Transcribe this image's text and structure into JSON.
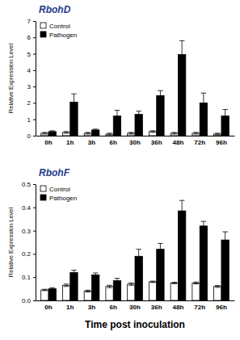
{
  "chart_data": [
    {
      "type": "bar",
      "title": "RbohD",
      "y_label": "Relative Expression Level",
      "categories": [
        "0h",
        "1h",
        "3h",
        "6h",
        "30h",
        "36h",
        "48h",
        "72h",
        "96h"
      ],
      "series": [
        {
          "name": "Control",
          "color": "#ffffff",
          "values": [
            0.15,
            0.2,
            0.15,
            0.1,
            0.15,
            0.25,
            0.15,
            0.15,
            0.1
          ],
          "errors": [
            0.05,
            0.05,
            0.05,
            0.05,
            0.05,
            0.05,
            0.05,
            0.05,
            0.05
          ]
        },
        {
          "name": "Pathogen",
          "color": "#000000",
          "values": [
            0.25,
            2.05,
            0.35,
            1.2,
            1.3,
            2.45,
            4.95,
            2.0,
            1.2
          ],
          "errors": [
            0.05,
            0.5,
            0.05,
            0.35,
            0.2,
            0.3,
            0.85,
            0.6,
            0.4
          ]
        }
      ],
      "ylim": [
        0,
        7
      ],
      "yticks": [
        0,
        1,
        2,
        3,
        4,
        5,
        6,
        7
      ],
      "legend": "upper left"
    },
    {
      "type": "bar",
      "title": "RbohF",
      "y_label": "Relative Expression Level",
      "x_label": "Time post inoculation",
      "categories": [
        "0h",
        "1h",
        "3h",
        "6h",
        "30h",
        "36h",
        "48h",
        "72h",
        "96h"
      ],
      "series": [
        {
          "name": "Control",
          "color": "#ffffff",
          "values": [
            0.045,
            0.065,
            0.04,
            0.06,
            0.07,
            0.08,
            0.075,
            0.075,
            0.06
          ],
          "errors": [
            0.003,
            0.005,
            0.004,
            0.005,
            0.005,
            0.003,
            0.003,
            0.004,
            0.004
          ]
        },
        {
          "name": "Pathogen",
          "color": "#000000",
          "values": [
            0.05,
            0.12,
            0.11,
            0.085,
            0.19,
            0.22,
            0.385,
            0.32,
            0.26
          ],
          "errors": [
            0.005,
            0.01,
            0.008,
            0.01,
            0.03,
            0.025,
            0.045,
            0.02,
            0.035
          ]
        }
      ],
      "ylim": [
        0,
        0.5
      ],
      "yticks": [
        {
          "value": 0,
          "label": "0.0"
        },
        {
          "value": 0.1,
          "label": "0.1"
        },
        {
          "value": 0.2,
          "label": "0.2"
        },
        {
          "value": 0.3,
          "label": "0.3"
        },
        {
          "value": 0.4,
          "label": "0.4"
        },
        {
          "value": 0.5,
          "label": "0.5"
        }
      ],
      "legend": "upper left"
    }
  ]
}
